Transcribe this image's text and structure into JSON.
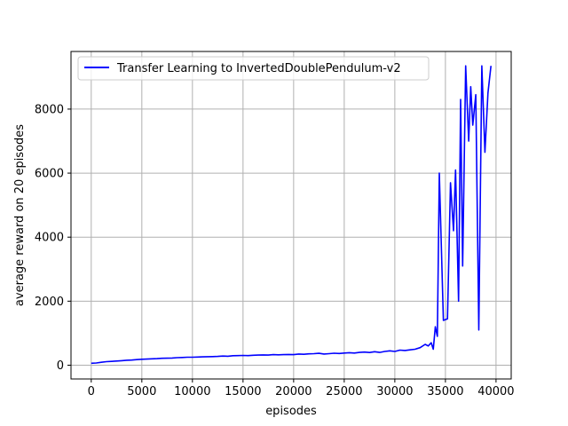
{
  "chart_data": {
    "type": "line",
    "title": "",
    "xlabel": "episodes",
    "ylabel": "average reward on 20 episodes",
    "xlim": [
      -2000,
      41500
    ],
    "ylim": [
      -430,
      9800
    ],
    "xticks": [
      0,
      5000,
      10000,
      15000,
      20000,
      25000,
      30000,
      35000,
      40000
    ],
    "yticks": [
      0,
      2000,
      4000,
      6000,
      8000
    ],
    "grid": true,
    "legend_position": "top-left",
    "series": [
      {
        "name": "Transfer Learning to InvertedDoublePendulum-v2",
        "color": "#0000ff",
        "x": [
          0,
          500,
          1000,
          1500,
          2000,
          2500,
          3000,
          3500,
          4000,
          4500,
          5000,
          5500,
          6000,
          6500,
          7000,
          7500,
          8000,
          8500,
          9000,
          9500,
          10000,
          10500,
          11000,
          11500,
          12000,
          12500,
          13000,
          13500,
          14000,
          14500,
          15000,
          15500,
          16000,
          16500,
          17000,
          17500,
          18000,
          18500,
          19000,
          19500,
          20000,
          20500,
          21000,
          21500,
          22000,
          22500,
          23000,
          23500,
          24000,
          24500,
          25000,
          25500,
          26000,
          26500,
          27000,
          27500,
          28000,
          28500,
          29000,
          29500,
          30000,
          30500,
          31000,
          31500,
          32000,
          32500,
          33000,
          33300,
          33600,
          33800,
          34000,
          34200,
          34400,
          34800,
          35200,
          35500,
          35800,
          36000,
          36300,
          36500,
          36700,
          37000,
          37300,
          37500,
          37700,
          38000,
          38300,
          38600,
          38900,
          39200,
          39500
        ],
        "values": [
          60,
          70,
          90,
          110,
          120,
          130,
          140,
          155,
          160,
          175,
          185,
          190,
          200,
          205,
          215,
          220,
          225,
          235,
          240,
          250,
          250,
          255,
          260,
          265,
          270,
          275,
          285,
          280,
          295,
          300,
          305,
          300,
          310,
          315,
          320,
          315,
          330,
          325,
          330,
          335,
          330,
          350,
          340,
          355,
          360,
          370,
          350,
          360,
          375,
          365,
          380,
          390,
          380,
          400,
          410,
          395,
          420,
          400,
          430,
          450,
          430,
          470,
          460,
          480,
          500,
          550,
          650,
          600,
          700,
          500,
          1200,
          900,
          6000,
          1400,
          1450,
          5700,
          4200,
          6100,
          2000,
          8300,
          3100,
          9350,
          7000,
          8700,
          7500,
          8450,
          1100,
          9350,
          6650,
          8500,
          9350
        ]
      }
    ]
  }
}
